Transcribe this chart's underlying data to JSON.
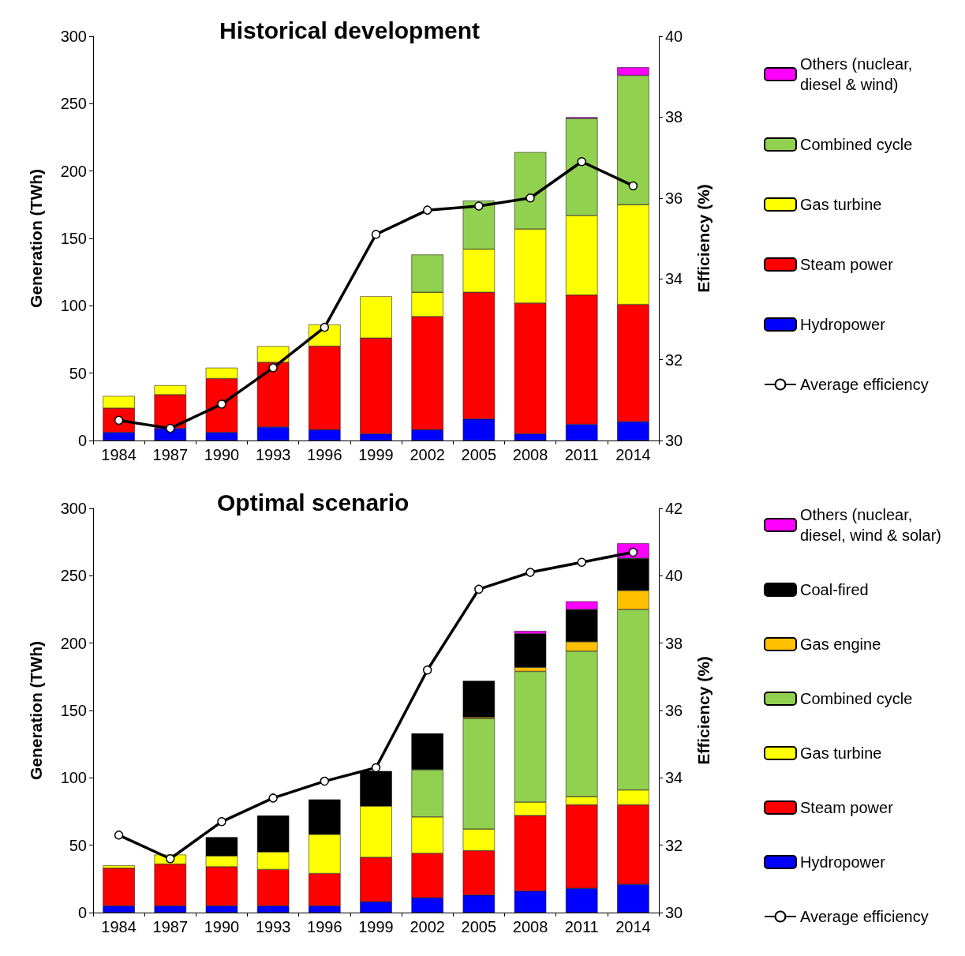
{
  "chart_data": [
    {
      "type": "bar",
      "title": "Historical development",
      "categories": [
        "1984",
        "1987",
        "1990",
        "1993",
        "1996",
        "1999",
        "2002",
        "2005",
        "2008",
        "2011",
        "2014"
      ],
      "ylabel": "Generation (TWh)",
      "y2label": "Efficiency (%)",
      "stacked": true,
      "legend": "right",
      "grid": false,
      "ylim": [
        0,
        300
      ],
      "yticks": [
        0,
        50,
        100,
        150,
        200,
        250,
        300
      ],
      "y2lim": [
        30,
        40
      ],
      "y2ticks": [
        30,
        32,
        34,
        36,
        38,
        40
      ],
      "series": [
        {
          "name": "Hydropower",
          "color": "#0000ff",
          "values": [
            6,
            9,
            6,
            10,
            8,
            5,
            8,
            16,
            5,
            12,
            14
          ]
        },
        {
          "name": "Steam power",
          "color": "#ff0000",
          "values": [
            18,
            25,
            40,
            48,
            62,
            71,
            84,
            94,
            97,
            96,
            87
          ]
        },
        {
          "name": "Gas turbine",
          "color": "#ffff00",
          "values": [
            9,
            7,
            8,
            12,
            16,
            31,
            18,
            32,
            55,
            59,
            74
          ]
        },
        {
          "name": "Combined cycle",
          "color": "#92d050",
          "values": [
            null,
            null,
            null,
            null,
            null,
            null,
            28,
            36,
            57,
            72,
            96
          ]
        },
        {
          "name": "Others (nuclear, diesel & wind)",
          "color": "#ff00ff",
          "values": [
            null,
            null,
            null,
            null,
            null,
            null,
            null,
            null,
            null,
            1,
            6
          ]
        },
        {
          "name": "Average efficiency",
          "type": "line",
          "axis": "y2",
          "color": "#000000",
          "marker": "circle",
          "values": [
            30.5,
            30.3,
            30.9,
            31.8,
            32.8,
            35.1,
            35.7,
            35.8,
            36.0,
            36.9,
            36.3
          ]
        }
      ]
    },
    {
      "type": "bar",
      "title": "Optimal scenario",
      "categories": [
        "1984",
        "1987",
        "1990",
        "1993",
        "1996",
        "1999",
        "2002",
        "2005",
        "2008",
        "2011",
        "2014"
      ],
      "ylabel": "Generation (TWh)",
      "y2label": "Efficiency (%)",
      "stacked": true,
      "legend": "right",
      "grid": false,
      "ylim": [
        0,
        300
      ],
      "yticks": [
        0,
        50,
        100,
        150,
        200,
        250,
        300
      ],
      "y2lim": [
        30,
        42
      ],
      "y2ticks": [
        30,
        32,
        34,
        36,
        38,
        40,
        42
      ],
      "series": [
        {
          "name": "Hydropower",
          "color": "#0000ff",
          "values": [
            5,
            5,
            5,
            5,
            5,
            8,
            11,
            13,
            16,
            18,
            21
          ]
        },
        {
          "name": "Steam power",
          "color": "#ff0000",
          "values": [
            28,
            31,
            29,
            27,
            24,
            33,
            33,
            33,
            56,
            62,
            59
          ]
        },
        {
          "name": "Gas turbine",
          "color": "#ffff00",
          "values": [
            2,
            7,
            8,
            13,
            29,
            38,
            27,
            16,
            10,
            6,
            11
          ]
        },
        {
          "name": "Combined cycle",
          "color": "#92d050",
          "values": [
            null,
            null,
            null,
            null,
            null,
            null,
            35,
            82,
            97,
            108,
            134
          ]
        },
        {
          "name": "Gas engine",
          "color": "#ffc000",
          "values": [
            null,
            null,
            null,
            null,
            null,
            null,
            null,
            1,
            3,
            7,
            14
          ]
        },
        {
          "name": "Coal-fired",
          "color": "#000000",
          "values": [
            null,
            null,
            14,
            27,
            26,
            26,
            27,
            27,
            25,
            24,
            24
          ]
        },
        {
          "name": "Others (nuclear, diesel, wind & solar)",
          "color": "#ff00ff",
          "values": [
            null,
            null,
            null,
            null,
            null,
            null,
            null,
            null,
            2,
            6,
            11
          ]
        },
        {
          "name": "Average efficiency",
          "type": "line",
          "axis": "y2",
          "color": "#000000",
          "marker": "circle",
          "values": [
            32.3,
            31.6,
            32.7,
            33.4,
            33.9,
            34.3,
            37.2,
            39.6,
            40.1,
            40.4,
            40.7
          ]
        }
      ]
    }
  ]
}
